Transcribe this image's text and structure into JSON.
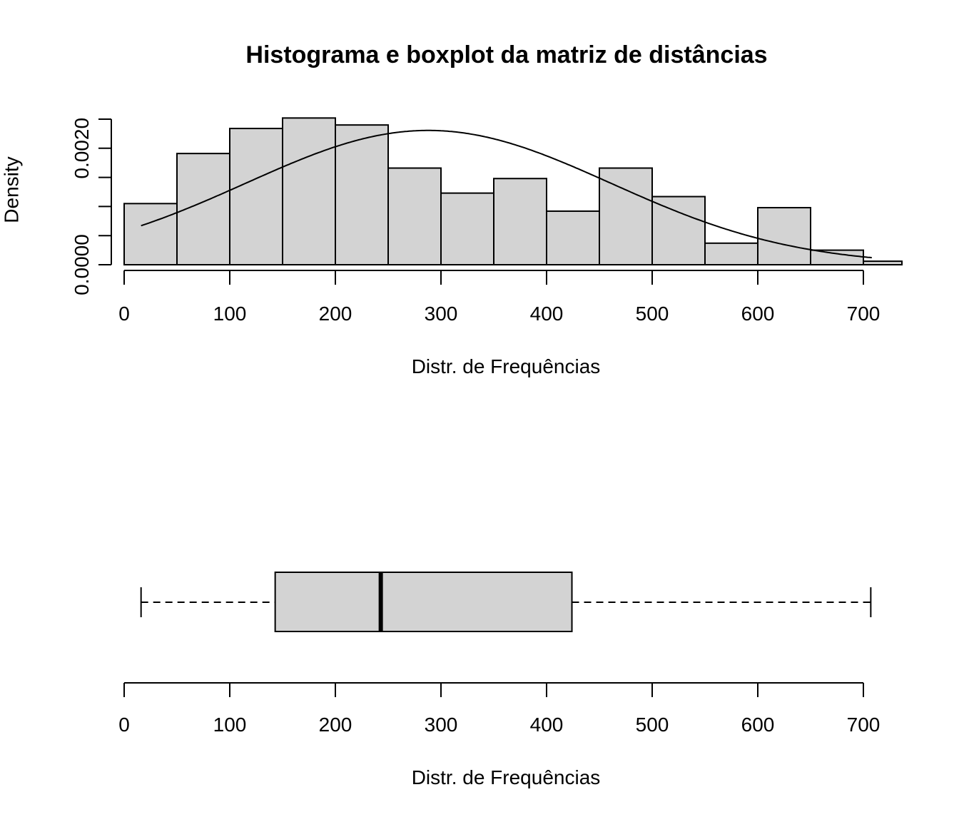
{
  "chart_data": [
    {
      "type": "bar",
      "subtype": "histogram",
      "title": "Histograma e boxplot da matriz de distâncias",
      "xlabel": "Distr. de Frequências",
      "ylabel": "Density",
      "xlim": [
        0,
        700
      ],
      "ylim": [
        0,
        0.0025
      ],
      "x_ticks": [
        0,
        100,
        200,
        300,
        400,
        500,
        600,
        700
      ],
      "x_tick_labels": [
        "0",
        "100",
        "200",
        "300",
        "400",
        "500",
        "600",
        "700"
      ],
      "y_ticks": [
        0,
        0.0005,
        0.001,
        0.0015,
        0.002,
        0.0025
      ],
      "y_tick_labels": [
        "0.0000",
        "",
        "",
        "",
        "0.0020",
        ""
      ],
      "bin_width": 50,
      "bins": [
        {
          "from": 0,
          "to": 50,
          "density": 0.00105
        },
        {
          "from": 50,
          "to": 100,
          "density": 0.00191
        },
        {
          "from": 100,
          "to": 150,
          "density": 0.00234
        },
        {
          "from": 150,
          "to": 200,
          "density": 0.00252
        },
        {
          "from": 200,
          "to": 250,
          "density": 0.0024
        },
        {
          "from": 250,
          "to": 300,
          "density": 0.00166
        },
        {
          "from": 300,
          "to": 350,
          "density": 0.00123
        },
        {
          "from": 350,
          "to": 400,
          "density": 0.00148
        },
        {
          "from": 400,
          "to": 450,
          "density": 0.00092
        },
        {
          "from": 450,
          "to": 500,
          "density": 0.00166
        },
        {
          "from": 500,
          "to": 550,
          "density": 0.00117
        },
        {
          "from": 550,
          "to": 600,
          "density": 0.00037
        },
        {
          "from": 600,
          "to": 650,
          "density": 0.00098
        },
        {
          "from": 650,
          "to": 700,
          "density": 0.00025
        },
        {
          "from": 700,
          "to": 750,
          "density": 6e-05
        }
      ],
      "overlay_curve": {
        "type": "normal_density",
        "mean": 288,
        "sd": 173,
        "x_from": 16,
        "x_to": 708
      },
      "grid": false,
      "bar_fill": "#d3d3d3",
      "bar_stroke": "#000000"
    },
    {
      "type": "boxplot",
      "orientation": "horizontal",
      "xlabel": "Distr. de Frequências",
      "xlim": [
        0,
        700
      ],
      "x_ticks": [
        0,
        100,
        200,
        300,
        400,
        500,
        600,
        700
      ],
      "x_tick_labels": [
        "0",
        "100",
        "200",
        "300",
        "400",
        "500",
        "600",
        "700"
      ],
      "stats": {
        "lower_whisker": 16,
        "q1": 143,
        "median": 243,
        "q3": 424,
        "upper_whisker": 707
      },
      "box_fill": "#d3d3d3",
      "grid": false
    }
  ],
  "labels": {
    "title": "Histograma e boxplot da matriz de distâncias",
    "hist_xlabel": "Distr. de Frequências",
    "hist_ylabel": "Density",
    "box_xlabel": "Distr. de Frequências"
  }
}
